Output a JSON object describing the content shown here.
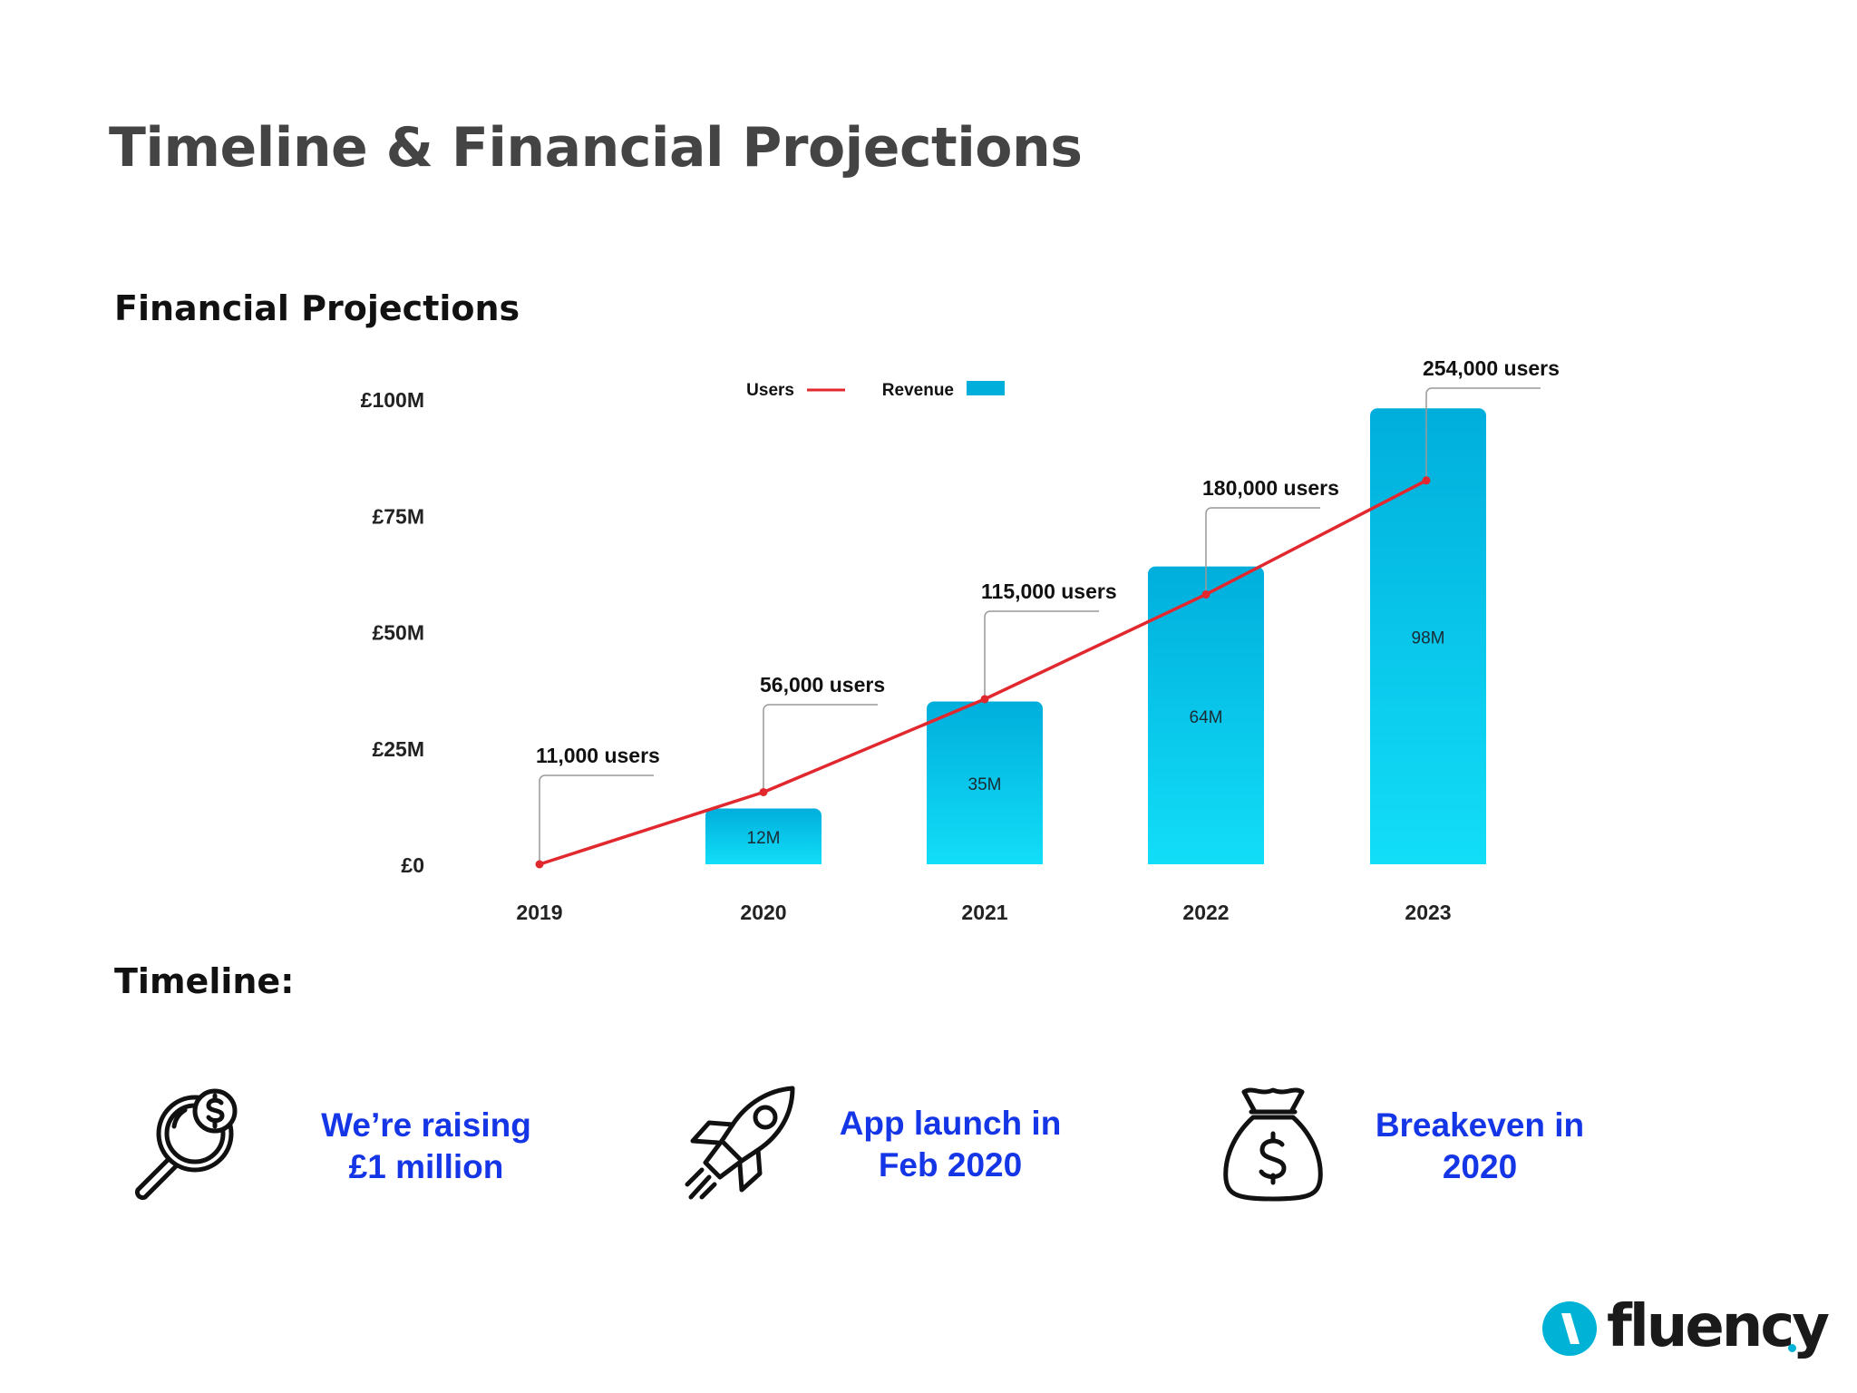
{
  "page": {
    "title": "Timeline & Financial Projections",
    "financial_heading": "Financial Projections",
    "timeline_heading": "Timeline:"
  },
  "colors": {
    "users_line": "#e0282e",
    "revenue_bar_top": "#00aedc",
    "revenue_bar_bottom": "#12def8",
    "timeline_text": "#1536e6",
    "brand_accent": "#00b3d6"
  },
  "chart_data": {
    "type": "bar",
    "title": "Financial Projections",
    "categories": [
      "2019",
      "2020",
      "2021",
      "2022",
      "2023"
    ],
    "ylim": [
      0,
      100
    ],
    "yticks": [
      {
        "value": 0,
        "label": "£0"
      },
      {
        "value": 25,
        "label": "£25M"
      },
      {
        "value": 50,
        "label": "£50M"
      },
      {
        "value": 75,
        "label": "£75M"
      },
      {
        "value": 100,
        "label": "£100M"
      }
    ],
    "legend": {
      "position": "top",
      "users_label": "Users",
      "revenue_label": "Revenue"
    },
    "series": [
      {
        "name": "Revenue",
        "kind": "bar",
        "unit": "£M",
        "values": [
          null,
          12,
          35,
          64,
          98
        ],
        "labels": [
          "",
          "12M",
          "35M",
          "64M",
          "98M"
        ]
      },
      {
        "name": "Users",
        "kind": "line",
        "values": [
          11000,
          56000,
          115000,
          180000,
          254000
        ],
        "labels": [
          "11,000 users",
          "56,000 users",
          "115,000 users",
          "180,000 users",
          "254,000 users"
        ],
        "plotted_on_revenue_scale": [
          0,
          15.5,
          35.5,
          58,
          82.5
        ]
      }
    ]
  },
  "timeline": {
    "items": [
      {
        "icon": "magnifier-dollar-icon",
        "line1": "We’re raising",
        "line2": "£1 million"
      },
      {
        "icon": "rocket-icon",
        "line1": "App launch in",
        "line2": "Feb 2020"
      },
      {
        "icon": "money-bag-icon",
        "line1": "Breakeven in",
        "line2": "2020"
      }
    ]
  },
  "brand": {
    "name": "fluency"
  }
}
